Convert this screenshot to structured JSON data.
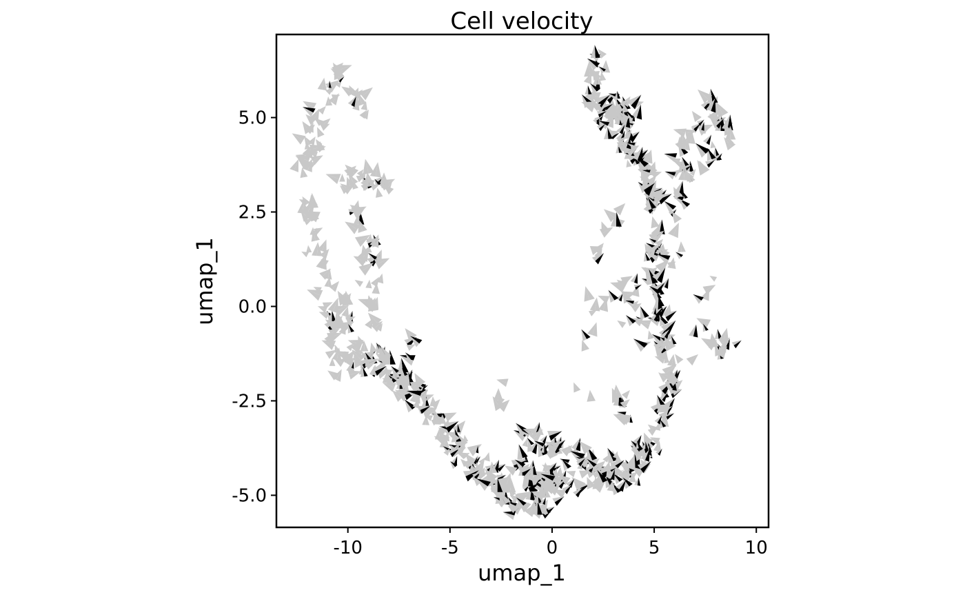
{
  "chart_data": {
    "type": "scatter",
    "subtype": "velocity-arrows",
    "title": "Cell velocity",
    "xlabel": "umap_1",
    "ylabel": "umap_1",
    "xlim": [
      -13.5,
      10.6
    ],
    "ylim": [
      -5.85,
      7.2
    ],
    "grid": false,
    "legend": "none",
    "colors": {
      "arrow_light": "#c8c8c8",
      "arrow_dark": "#000000",
      "frame": "#000000"
    },
    "xticks": [
      {
        "value": -10,
        "label": "-10"
      },
      {
        "value": -5,
        "label": "-5"
      },
      {
        "value": 0,
        "label": "0"
      },
      {
        "value": 5,
        "label": "5"
      },
      {
        "value": 10,
        "label": "10"
      }
    ],
    "yticks": [
      {
        "value": 5.0,
        "label": "5.0"
      },
      {
        "value": 2.5,
        "label": "2.5"
      },
      {
        "value": 0.0,
        "label": "0.0"
      },
      {
        "value": -2.5,
        "label": "-2.5"
      },
      {
        "value": -5.0,
        "label": "-5.0"
      }
    ],
    "regions": [
      {
        "points": [
          [
            -12.4,
            3.6
          ],
          [
            -11.9,
            3.9
          ],
          [
            -11.6,
            4.2
          ],
          [
            -11.9,
            4.7
          ],
          [
            -11.5,
            5.0
          ],
          [
            -11.0,
            5.5
          ],
          [
            -10.6,
            6.1
          ],
          [
            -10.3,
            6.2
          ],
          [
            -9.9,
            5.4
          ],
          [
            -9.3,
            5.3
          ]
        ],
        "spread": 0.32,
        "count": 60,
        "dark": 0.12
      },
      {
        "points": [
          [
            -12.0,
            2.7
          ],
          [
            -11.8,
            2.1
          ],
          [
            -11.6,
            1.6
          ],
          [
            -11.3,
            0.8
          ],
          [
            -11.1,
            0.2
          ],
          [
            -10.9,
            -0.5
          ],
          [
            -10.7,
            -1.2
          ],
          [
            -10.2,
            -1.6
          ]
        ],
        "spread": 0.38,
        "count": 55,
        "dark": 0.12
      },
      {
        "points": [
          [
            -10.2,
            3.2
          ],
          [
            -9.6,
            3.4
          ],
          [
            -8.9,
            3.3
          ],
          [
            -8.2,
            3.0
          ],
          [
            -9.6,
            2.2
          ],
          [
            -9.2,
            1.7
          ],
          [
            -8.8,
            1.4
          ],
          [
            -9.0,
            0.9
          ],
          [
            -8.7,
            0.3
          ],
          [
            -8.8,
            -0.4
          ]
        ],
        "spread": 0.35,
        "count": 70,
        "dark": 0.18
      },
      {
        "points": [
          [
            -10.3,
            -0.2
          ],
          [
            -10.0,
            -0.9
          ],
          [
            -9.6,
            -1.3
          ],
          [
            -9.1,
            -1.5
          ],
          [
            -8.4,
            -1.5
          ],
          [
            -7.8,
            -1.8
          ],
          [
            -7.2,
            -2.1
          ],
          [
            -6.6,
            -2.4
          ],
          [
            -6.0,
            -2.8
          ],
          [
            -5.5,
            -3.2
          ],
          [
            -5.0,
            -3.6
          ],
          [
            -4.5,
            -3.9
          ],
          [
            -4.0,
            -4.2
          ],
          [
            -3.5,
            -4.4
          ],
          [
            -3.0,
            -4.6
          ],
          [
            -2.6,
            -4.9
          ],
          [
            -2.1,
            -5.1
          ],
          [
            -1.6,
            -5.2
          ],
          [
            -1.0,
            -5.2
          ],
          [
            -0.4,
            -5.2
          ]
        ],
        "spread": 0.36,
        "count": 230,
        "dark": 0.28
      },
      {
        "points": [
          [
            -7.0,
            -0.9
          ],
          [
            -6.4,
            -1.1
          ],
          [
            -6.9,
            -1.6
          ]
        ],
        "spread": 0.2,
        "count": 6,
        "dark": 0.4
      },
      {
        "points": [
          [
            -2.3,
            -2.0
          ],
          [
            -2.5,
            -2.6
          ],
          [
            -2.7,
            -3.0
          ]
        ],
        "spread": 0.15,
        "count": 5,
        "dark": 0.2
      },
      {
        "points": [
          [
            -1.1,
            -3.6
          ],
          [
            -0.4,
            -3.7
          ],
          [
            0.3,
            -3.8
          ],
          [
            0.9,
            -4.0
          ],
          [
            1.5,
            -4.1
          ],
          [
            2.1,
            -4.2
          ],
          [
            2.8,
            -4.3
          ],
          [
            3.4,
            -4.4
          ],
          [
            4.0,
            -4.5
          ],
          [
            -1.6,
            -4.3
          ],
          [
            -0.9,
            -4.6
          ],
          [
            -0.2,
            -4.5
          ],
          [
            0.6,
            -4.6
          ],
          [
            1.3,
            -4.7
          ],
          [
            2.0,
            -4.6
          ],
          [
            2.7,
            -4.6
          ],
          [
            3.5,
            -4.7
          ],
          [
            -0.6,
            -5.0
          ],
          [
            0.3,
            -4.9
          ],
          [
            1.0,
            -4.9
          ]
        ],
        "spread": 0.3,
        "count": 160,
        "dark": 0.4
      },
      {
        "points": [
          [
            1.2,
            -2.4
          ],
          [
            1.9,
            -2.3
          ],
          [
            2.6,
            -2.2
          ],
          [
            3.3,
            -2.6
          ],
          [
            3.7,
            -2.9
          ]
        ],
        "spread": 0.25,
        "count": 12,
        "dark": 0.3
      },
      {
        "points": [
          [
            4.4,
            -4.0
          ],
          [
            4.9,
            -3.6
          ],
          [
            5.3,
            -3.1
          ],
          [
            5.6,
            -2.5
          ],
          [
            5.8,
            -1.9
          ],
          [
            5.6,
            -1.2
          ],
          [
            5.3,
            -0.5
          ],
          [
            5.2,
            0.2
          ],
          [
            5.0,
            0.9
          ],
          [
            4.9,
            1.5
          ],
          [
            5.1,
            2.1
          ],
          [
            4.9,
            2.7
          ],
          [
            4.8,
            3.2
          ],
          [
            4.5,
            3.6
          ],
          [
            4.0,
            4.0
          ],
          [
            3.5,
            4.3
          ],
          [
            3.0,
            4.6
          ],
          [
            2.5,
            5.0
          ],
          [
            2.1,
            5.4
          ],
          [
            2.0,
            5.8
          ],
          [
            2.3,
            6.3
          ],
          [
            3.0,
            5.2
          ],
          [
            3.8,
            5.0
          ]
        ],
        "spread": 0.34,
        "count": 260,
        "dark": 0.55
      },
      {
        "points": [
          [
            5.6,
            1.3
          ],
          [
            6.1,
            1.6
          ],
          [
            6.1,
            2.4
          ],
          [
            6.4,
            2.9
          ],
          [
            5.8,
            3.3
          ],
          [
            6.6,
            3.6
          ],
          [
            6.3,
            4.0
          ],
          [
            6.8,
            4.4
          ],
          [
            7.1,
            4.8
          ],
          [
            7.6,
            5.2
          ],
          [
            8.1,
            5.0
          ],
          [
            8.5,
            4.5
          ],
          [
            7.8,
            4.1
          ],
          [
            7.4,
            3.8
          ]
        ],
        "spread": 0.3,
        "count": 75,
        "dark": 0.35
      },
      {
        "points": [
          [
            3.5,
            0.5
          ],
          [
            3.8,
            0.3
          ],
          [
            4.3,
            -0.5
          ],
          [
            4.8,
            -0.8
          ],
          [
            3.8,
            -0.2
          ],
          [
            4.2,
            0.1
          ]
        ],
        "spread": 0.35,
        "count": 22,
        "dark": 0.3
      },
      {
        "points": [
          [
            2.3,
            2.1
          ],
          [
            2.8,
            2.2
          ],
          [
            3.2,
            2.3
          ],
          [
            2.6,
            1.7
          ],
          [
            2.1,
            1.4
          ],
          [
            3.4,
            0.5
          ],
          [
            2.9,
            0.1
          ]
        ],
        "spread": 0.28,
        "count": 14,
        "dark": 0.3
      },
      {
        "points": [
          [
            1.8,
            -0.8
          ],
          [
            1.6,
            -1.3
          ],
          [
            2.0,
            0.0
          ],
          [
            2.4,
            -0.3
          ],
          [
            1.9,
            -0.6
          ]
        ],
        "spread": 0.2,
        "count": 7,
        "dark": 0.25
      },
      {
        "points": [
          [
            7.4,
            0.6
          ],
          [
            7.8,
            0.5
          ],
          [
            7.3,
            0.0
          ],
          [
            7.6,
            -0.4
          ],
          [
            6.9,
            -0.8
          ],
          [
            6.5,
            -1.5
          ],
          [
            6.0,
            -1.8
          ]
        ],
        "spread": 0.25,
        "count": 12,
        "dark": 0.3
      },
      {
        "points": [
          [
            8.0,
            -1.0
          ],
          [
            8.4,
            -1.1
          ],
          [
            8.9,
            -1.2
          ],
          [
            9.4,
            -1.2
          ],
          [
            8.2,
            -1.3
          ]
        ],
        "spread": 0.18,
        "count": 12,
        "dark": 0.3
      }
    ]
  }
}
